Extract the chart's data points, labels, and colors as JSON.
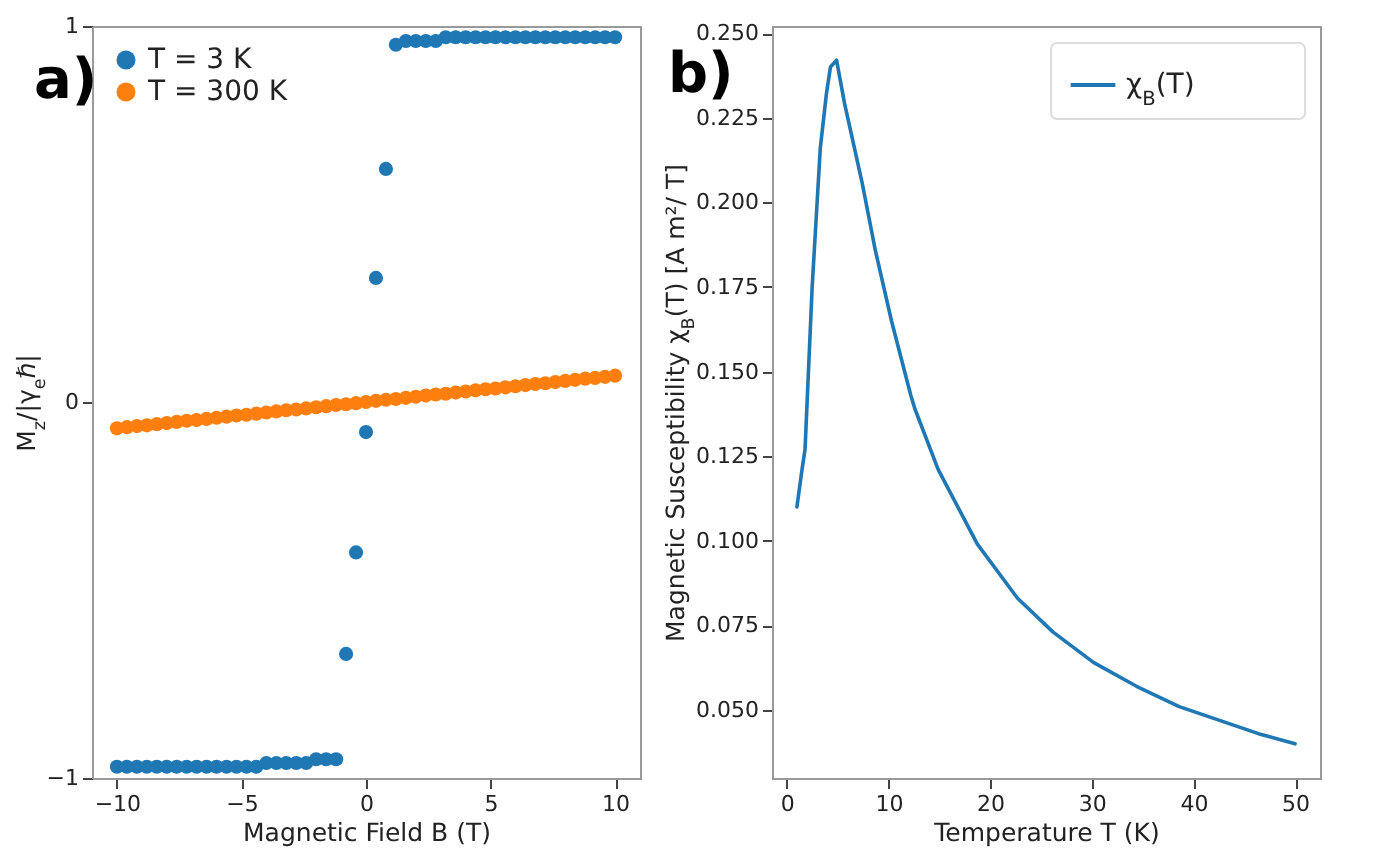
{
  "chart_data": [
    {
      "type": "scatter",
      "title": "a)",
      "xlabel": "Magnetic Field B (T)",
      "ylabel": "M$_{z}$/|γ$_{e}$ℏ|",
      "xlim": [
        -11,
        11
      ],
      "ylim": [
        -1,
        1
      ],
      "xticks": [
        {
          "value": -10,
          "label": "−10"
        },
        {
          "value": -5,
          "label": "−5"
        },
        0,
        5,
        10
      ],
      "yticks": [
        {
          "value": -1,
          "label": "−1"
        },
        0,
        1
      ],
      "legend": "top left",
      "marker": "circle",
      "series": [
        {
          "name": "T = 3 K",
          "color": "#1f77b4",
          "x": [
            -10,
            -9.6,
            -9.2,
            -8.8,
            -8.4,
            -8,
            -7.6,
            -7.2,
            -6.8,
            -6.4,
            -6,
            -5.6,
            -5.2,
            -4.8,
            -4.4,
            -4,
            -3.6,
            -3.2,
            -2.8,
            -2.4,
            -2,
            -1.6,
            -1.2,
            -0.8,
            -0.4,
            0,
            0.4,
            0.8,
            1.2,
            1.6,
            2,
            2.4,
            2.8,
            3.2,
            3.6,
            4,
            4.4,
            4.8,
            5.2,
            5.6,
            6,
            6.4,
            6.8,
            7.2,
            7.6,
            8,
            8.4,
            8.8,
            9.2,
            9.6,
            10
          ],
          "values": [
            -0.97,
            -0.97,
            -0.97,
            -0.97,
            -0.97,
            -0.97,
            -0.97,
            -0.97,
            -0.97,
            -0.97,
            -0.97,
            -0.97,
            -0.97,
            -0.97,
            -0.97,
            -0.96,
            -0.96,
            -0.96,
            -0.96,
            -0.96,
            -0.95,
            -0.95,
            -0.95,
            -0.67,
            -0.4,
            -0.08,
            0.33,
            0.62,
            0.95,
            0.96,
            0.96,
            0.96,
            0.96,
            0.97,
            0.97,
            0.97,
            0.97,
            0.97,
            0.97,
            0.97,
            0.97,
            0.97,
            0.97,
            0.97,
            0.97,
            0.97,
            0.97,
            0.97,
            0.97,
            0.97,
            0.97
          ]
        },
        {
          "name": "T = 300 K",
          "color": "#ff7f0e",
          "x": [
            -10,
            -9.6,
            -9.2,
            -8.8,
            -8.4,
            -8,
            -7.6,
            -7.2,
            -6.8,
            -6.4,
            -6,
            -5.6,
            -5.2,
            -4.8,
            -4.4,
            -4,
            -3.6,
            -3.2,
            -2.8,
            -2.4,
            -2,
            -1.6,
            -1.2,
            -0.8,
            -0.4,
            0,
            0.4,
            0.8,
            1.2,
            1.6,
            2,
            2.4,
            2.8,
            3.2,
            3.6,
            4,
            4.4,
            4.8,
            5.2,
            5.6,
            6,
            6.4,
            6.8,
            7.2,
            7.6,
            8,
            8.4,
            8.8,
            9.2,
            9.6,
            10
          ],
          "values": [
            -0.07,
            -0.067,
            -0.064,
            -0.062,
            -0.059,
            -0.056,
            -0.053,
            -0.05,
            -0.048,
            -0.045,
            -0.042,
            -0.039,
            -0.036,
            -0.034,
            -0.031,
            -0.028,
            -0.025,
            -0.022,
            -0.02,
            -0.017,
            -0.014,
            -0.011,
            -0.008,
            -0.006,
            -0.003,
            0,
            0.003,
            0.006,
            0.008,
            0.011,
            0.014,
            0.017,
            0.02,
            0.022,
            0.025,
            0.028,
            0.031,
            0.034,
            0.036,
            0.039,
            0.042,
            0.045,
            0.048,
            0.05,
            0.053,
            0.056,
            0.059,
            0.062,
            0.064,
            0.067,
            0.07
          ]
        }
      ]
    },
    {
      "type": "line",
      "title": "b)",
      "xlabel": "Temperature T (K)",
      "ylabel": "Magnetic Susceptibility χ$_{B}$(T) [A m²/ T]",
      "xlim": [
        -1.45,
        52.45
      ],
      "ylim": [
        0.0299,
        0.2521
      ],
      "xticks": [
        0,
        10,
        20,
        30,
        40,
        50
      ],
      "yticks": [
        {
          "value": 0.05,
          "label": "0.050"
        },
        {
          "value": 0.075,
          "label": "0.075"
        },
        {
          "value": 0.1,
          "label": "0.100"
        },
        {
          "value": 0.125,
          "label": "0.125"
        },
        {
          "value": 0.15,
          "label": "0.150"
        },
        {
          "value": 0.175,
          "label": "0.175"
        },
        {
          "value": 0.2,
          "label": "0.200"
        },
        {
          "value": 0.225,
          "label": "0.225"
        },
        {
          "value": 0.25,
          "label": "0.250"
        }
      ],
      "legend": "top right",
      "series": [
        {
          "name": "χ$_{B}$(T)",
          "color": "#1f77b4",
          "x": [
            1,
            1.5,
            1.8,
            2.5,
            3.3,
            3.9,
            4.3,
            4.9,
            5.7,
            7.4,
            8.7,
            10.3,
            12.2,
            12.6,
            14.9,
            18.75,
            22.7,
            26.2,
            30.2,
            34.4,
            38.6,
            42.5,
            46.4,
            50
          ],
          "values": [
            0.11,
            0.121,
            0.127,
            0.175,
            0.216,
            0.232,
            0.24,
            0.242,
            0.229,
            0.206,
            0.186,
            0.165,
            0.143,
            0.139,
            0.121,
            0.099,
            0.083,
            0.073,
            0.064,
            0.057,
            0.051,
            0.047,
            0.043,
            0.04
          ]
        }
      ]
    }
  ]
}
